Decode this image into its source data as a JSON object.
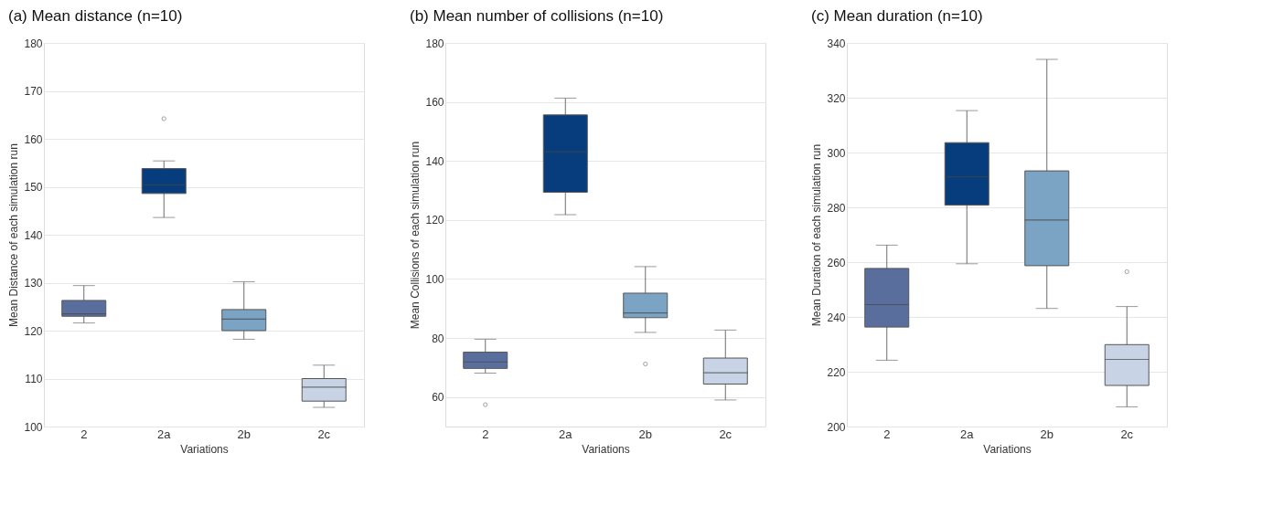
{
  "chart_data": [
    {
      "type": "box",
      "title": "(a) Mean distance (n=10)",
      "xlabel": "Variations",
      "ylabel": "Mean Distance of each simulation run",
      "categories": [
        "2",
        "2a",
        "2b",
        "2c"
      ],
      "colors": [
        "#5a6e9e",
        "#073d7c",
        "#7ba4c4",
        "#c8d4e6"
      ],
      "ylim": [
        100,
        180
      ],
      "yticks": [
        100,
        110,
        120,
        130,
        140,
        150,
        160,
        170,
        180
      ],
      "grid": "y",
      "boxes": [
        {
          "low": 121.6,
          "q1": 123.0,
          "median": 123.5,
          "q3": 126.3,
          "high": 129.4
        },
        {
          "low": 143.6,
          "q1": 148.6,
          "median": 150.4,
          "q3": 153.8,
          "high": 155.4,
          "outliers": [
            164.2
          ]
        },
        {
          "low": 118.2,
          "q1": 120.0,
          "median": 122.4,
          "q3": 124.4,
          "high": 130.2
        },
        {
          "low": 104.0,
          "q1": 105.3,
          "median": 108.2,
          "q3": 110.0,
          "high": 112.8
        }
      ]
    },
    {
      "type": "box",
      "title": "(b) Mean number of collisions (n=10)",
      "xlabel": "Variations",
      "ylabel": "Mean Collisions of each simulation run",
      "categories": [
        "2",
        "2a",
        "2b",
        "2c"
      ],
      "colors": [
        "#5a6e9e",
        "#073d7c",
        "#7ba4c4",
        "#c8d4e6"
      ],
      "ylim": [
        50,
        180
      ],
      "yticks": [
        60,
        80,
        100,
        120,
        140,
        160,
        180
      ],
      "grid": "y",
      "boxes": [
        {
          "low": 68.1,
          "q1": 69.7,
          "median": 71.9,
          "q3": 75.2,
          "high": 79.6,
          "outliers": [
            57.4
          ]
        },
        {
          "low": 121.8,
          "q1": 129.4,
          "median": 143.1,
          "q3": 155.6,
          "high": 161.3
        },
        {
          "low": 81.9,
          "q1": 86.9,
          "median": 88.5,
          "q3": 95.2,
          "high": 104.2,
          "outliers": [
            71.2
          ]
        },
        {
          "low": 59.0,
          "q1": 64.4,
          "median": 68.2,
          "q3": 73.2,
          "high": 82.7
        }
      ]
    },
    {
      "type": "box",
      "title": "(c) Mean duration (n=10)",
      "xlabel": "Variations",
      "ylabel": "Mean Duration of each simulation run",
      "categories": [
        "2",
        "2a",
        "2b",
        "2c"
      ],
      "colors": [
        "#5a6e9e",
        "#073d7c",
        "#7ba4c4",
        "#c8d4e6"
      ],
      "ylim": [
        200,
        340
      ],
      "yticks": [
        200,
        220,
        240,
        260,
        280,
        300,
        320,
        340
      ],
      "grid": "y",
      "boxes": [
        {
          "low": 224.2,
          "q1": 236.3,
          "median": 244.5,
          "q3": 257.7,
          "high": 266.2
        },
        {
          "low": 259.4,
          "q1": 280.8,
          "median": 291.1,
          "q3": 303.6,
          "high": 315.3
        },
        {
          "low": 243.1,
          "q1": 258.7,
          "median": 275.4,
          "q3": 293.3,
          "high": 334.0
        },
        {
          "low": 207.2,
          "q1": 215.0,
          "median": 224.5,
          "q3": 229.9,
          "high": 243.8,
          "outliers": [
            256.5
          ]
        }
      ]
    }
  ]
}
